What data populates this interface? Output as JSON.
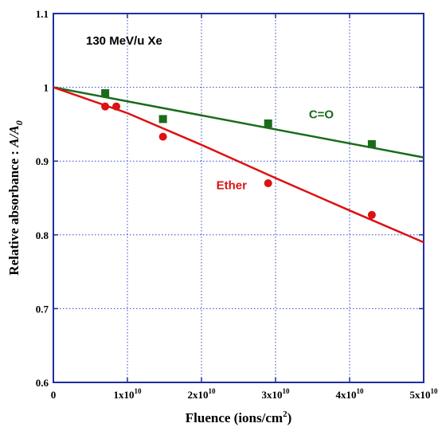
{
  "chart_data": {
    "type": "scatter",
    "annotation": "130 MeV/u  Xe",
    "xlabel": {
      "text": "Fluence (ions/cm",
      "sup": "2",
      "suffix": ")"
    },
    "ylabel": {
      "text": "Relative absorbance : ",
      "italic": "A/A",
      "sub": "0"
    },
    "xlim": [
      0,
      50000000000.0
    ],
    "ylim": [
      0.6,
      1.1
    ],
    "grid": true,
    "x_ticks": [
      {
        "value": 0,
        "base": "0",
        "exp": ""
      },
      {
        "value": 10000000000.0,
        "base": "1x10",
        "exp": "10"
      },
      {
        "value": 20000000000.0,
        "base": "2x10",
        "exp": "10"
      },
      {
        "value": 30000000000.0,
        "base": "3x10",
        "exp": "10"
      },
      {
        "value": 40000000000.0,
        "base": "4x10",
        "exp": "10"
      },
      {
        "value": 50000000000.0,
        "base": "5x10",
        "exp": "10"
      }
    ],
    "y_ticks": [
      {
        "value": 0.6,
        "label": "0.6"
      },
      {
        "value": 0.7,
        "label": "0.7"
      },
      {
        "value": 0.8,
        "label": "0.8"
      },
      {
        "value": 0.9,
        "label": "0.9"
      },
      {
        "value": 1.0,
        "label": "1"
      },
      {
        "value": 1.1,
        "label": "1.1"
      }
    ],
    "series": [
      {
        "name": "C=O",
        "color": "#1a6b1a",
        "marker": "square",
        "points": [
          [
            7000000000.0,
            0.992
          ],
          [
            14800000000.0,
            0.957
          ],
          [
            29000000000.0,
            0.951
          ],
          [
            43000000000.0,
            0.923
          ]
        ],
        "fit": [
          [
            0,
            1.0
          ],
          [
            50000000000.0,
            0.905
          ]
        ],
        "label_at": [
          34500000000.0,
          0.958
        ]
      },
      {
        "name": "Ether",
        "color": "#dd1111",
        "marker": "circle",
        "points": [
          [
            7000000000.0,
            0.974
          ],
          [
            8500000000.0,
            0.974
          ],
          [
            14800000000.0,
            0.933
          ],
          [
            29000000000.0,
            0.87
          ],
          [
            43000000000.0,
            0.827
          ]
        ],
        "fit": [
          [
            0,
            1.0
          ],
          [
            10000000000.0,
            0.965
          ],
          [
            20000000000.0,
            0.922
          ],
          [
            30000000000.0,
            0.877
          ],
          [
            40000000000.0,
            0.833
          ],
          [
            50000000000.0,
            0.79
          ]
        ],
        "label_at": [
          22000000000.0,
          0.862
        ]
      }
    ]
  }
}
